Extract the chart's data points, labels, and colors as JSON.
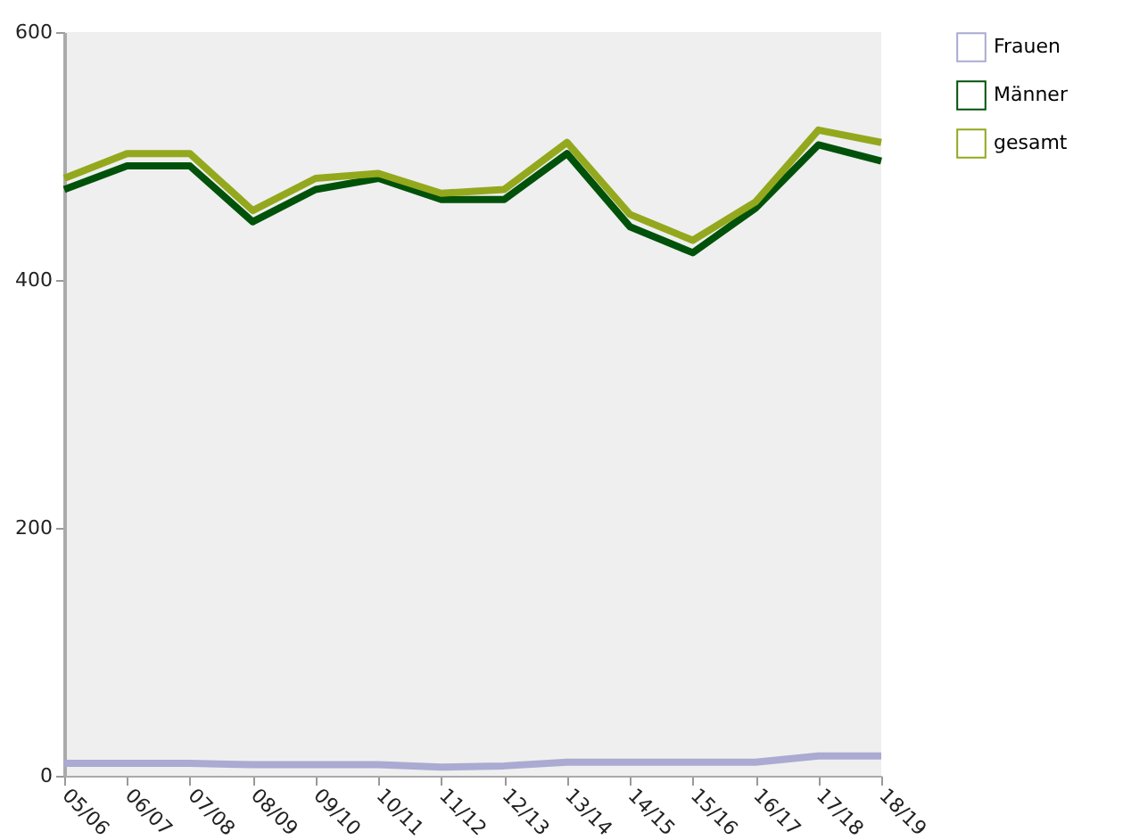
{
  "chart_data": {
    "type": "line",
    "categories": [
      "05/06",
      "06/07",
      "07/08",
      "08/09",
      "09/10",
      "10/11",
      "11/12",
      "12/13",
      "13/14",
      "14/15",
      "15/16",
      "16/17",
      "17/18",
      "18/19"
    ],
    "series": [
      {
        "name": "Frauen",
        "color": "#aaaad2",
        "values": [
          10,
          10,
          10,
          9,
          9,
          9,
          7,
          8,
          11,
          11,
          11,
          11,
          16,
          16
        ]
      },
      {
        "name": "Männer",
        "color": "#00520a",
        "values": [
          473,
          492,
          492,
          447,
          473,
          482,
          465,
          465,
          502,
          443,
          422,
          458,
          509,
          496
        ]
      },
      {
        "name": "gesamt",
        "color": "#94a81e",
        "values": [
          482,
          502,
          502,
          456,
          482,
          486,
          470,
          473,
          511,
          453,
          432,
          463,
          521,
          511
        ]
      }
    ],
    "ylim": [
      0,
      600
    ],
    "yticks": [
      0,
      200,
      400,
      600
    ],
    "legend": "top right",
    "marker": "none",
    "line_style": "solid"
  }
}
